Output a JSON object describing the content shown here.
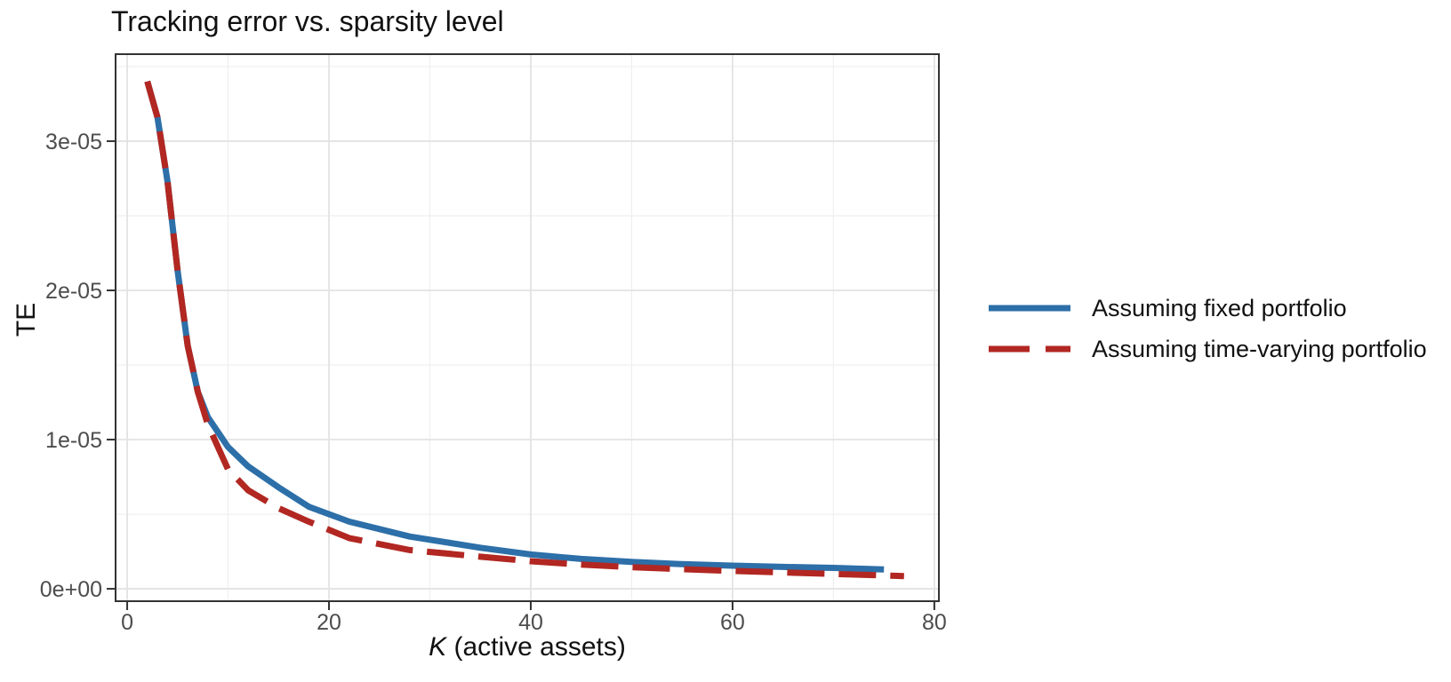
{
  "title": "Tracking error vs. sparsity level",
  "axes": {
    "x_label_italic": "K",
    "x_label_rest": " (active assets)",
    "y_label": "TE"
  },
  "legend": {
    "position": "right",
    "items": [
      {
        "label": "Assuming fixed portfolio",
        "color": "#2d6fa8",
        "style": "solid"
      },
      {
        "label": "Assuming time-varying portfolio",
        "color": "#b22722",
        "style": "dashed"
      }
    ]
  },
  "colors": {
    "background": "#ffffff",
    "panel_border": "#333333",
    "grid_major": "#e3e3e3",
    "grid_minor": "#efefef",
    "tick_mark": "#333333",
    "tick_label": "#4d4d4d",
    "blue_series": "#2d6fa8",
    "red_series": "#b22722"
  },
  "chart_data": {
    "type": "line",
    "title": "Tracking error vs. sparsity level",
    "xlabel": "K (active assets)",
    "ylabel": "TE",
    "legend_position": "right",
    "grid": "major+minor",
    "xlim": [
      -1.15,
      80.45
    ],
    "ylim": [
      -8.3e-07,
      3.583e-05
    ],
    "x_ticks": {
      "values": [
        0,
        20,
        40,
        60,
        80
      ],
      "labels": [
        "0",
        "20",
        "40",
        "60",
        "80"
      ]
    },
    "y_ticks": {
      "values": [
        0,
        1e-05,
        2e-05,
        3e-05
      ],
      "labels": [
        "0e+00",
        "1e-05",
        "2e-05",
        "3e-05"
      ]
    },
    "minor_x": [
      10,
      30,
      50,
      70
    ],
    "minor_y": [
      5e-06,
      1.5e-05,
      2.5e-05,
      3.5e-05
    ],
    "series": [
      {
        "name": "Assuming fixed portfolio",
        "color": "#2d6fa8",
        "style": "solid",
        "points": [
          [
            2,
            3.4e-05
          ],
          [
            3,
            3.16e-05
          ],
          [
            4,
            2.73e-05
          ],
          [
            5,
            2.13e-05
          ],
          [
            6,
            1.63e-05
          ],
          [
            7,
            1.32e-05
          ],
          [
            8,
            1.15e-05
          ],
          [
            10,
            9.5e-06
          ],
          [
            12,
            8.2e-06
          ],
          [
            15,
            6.8e-06
          ],
          [
            18,
            5.5e-06
          ],
          [
            22,
            4.5e-06
          ],
          [
            28,
            3.5e-06
          ],
          [
            35,
            2.75e-06
          ],
          [
            40,
            2.3e-06
          ],
          [
            45,
            2e-06
          ],
          [
            50,
            1.8e-06
          ],
          [
            55,
            1.65e-06
          ],
          [
            60,
            1.55e-06
          ],
          [
            65,
            1.47e-06
          ],
          [
            70,
            1.4e-06
          ],
          [
            75,
            1.3e-06
          ]
        ]
      },
      {
        "name": "Assuming time-varying portfolio",
        "color": "#b22722",
        "style": "dashed",
        "points": [
          [
            2,
            3.4e-05
          ],
          [
            3,
            3.16e-05
          ],
          [
            4,
            2.73e-05
          ],
          [
            5,
            2.13e-05
          ],
          [
            6,
            1.63e-05
          ],
          [
            7,
            1.32e-05
          ],
          [
            8,
            1.1e-05
          ],
          [
            10,
            8e-06
          ],
          [
            12,
            6.6e-06
          ],
          [
            15,
            5.4e-06
          ],
          [
            18,
            4.5e-06
          ],
          [
            22,
            3.4e-06
          ],
          [
            28,
            2.6e-06
          ],
          [
            35,
            2.15e-06
          ],
          [
            40,
            1.85e-06
          ],
          [
            45,
            1.62e-06
          ],
          [
            50,
            1.45e-06
          ],
          [
            55,
            1.32e-06
          ],
          [
            60,
            1.2e-06
          ],
          [
            65,
            1.1e-06
          ],
          [
            70,
            1e-06
          ],
          [
            74,
            9.2e-07
          ],
          [
            77,
            8.5e-07
          ]
        ]
      }
    ]
  }
}
